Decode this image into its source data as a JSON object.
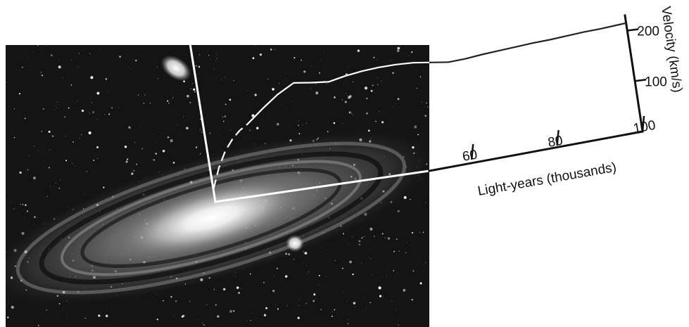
{
  "chart_data": {
    "type": "line",
    "title": "",
    "background": "photograph of a spiral galaxy with two small companion galaxies",
    "xlabel": "Light-years (thousands)",
    "ylabel": "Velocity (km/s)",
    "x_ticks": [
      "60",
      "80",
      "100"
    ],
    "y_ticks": [
      "100",
      "200"
    ],
    "y_tick_values": [
      100,
      200
    ],
    "xlim": [
      0,
      100
    ],
    "ylim": [
      0,
      230
    ],
    "grid": false,
    "series": [
      {
        "segment": "inner (dashed, drawn over the photograph)",
        "style": "dashed",
        "x": [
          0,
          2,
          4,
          6,
          8,
          10
        ],
        "y": [
          25,
          65,
          95,
          115,
          130,
          140
        ]
      },
      {
        "segment": "solid",
        "style": "solid",
        "x": [
          10,
          14,
          18,
          22,
          26,
          30,
          34,
          38,
          42,
          46,
          50,
          54,
          58,
          62,
          66,
          70,
          74,
          78,
          82,
          86,
          90,
          94,
          98,
          100
        ],
        "y": [
          140,
          165,
          188,
          205,
          200,
          196,
          202,
          206,
          208,
          208,
          206,
          201,
          196,
          197,
          200,
          202,
          204,
          206,
          207,
          209,
          211,
          212,
          214,
          215
        ]
      }
    ]
  },
  "colors": {
    "background": "#ffffff",
    "photo_bg": "#141414",
    "curve_on_photo": "#ffffff",
    "curve_on_white": "#222222",
    "axes": "#111111"
  }
}
